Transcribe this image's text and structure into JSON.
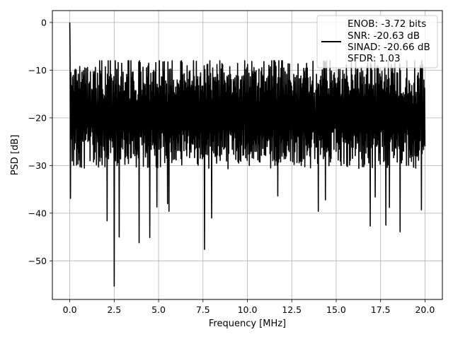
{
  "chart_data": {
    "type": "line",
    "title": "",
    "xlabel": "Frequency [MHz]",
    "ylabel": "PSD [dB]",
    "xlim": [
      -0.98,
      20.98
    ],
    "ylim": [
      -58.1,
      2.5
    ],
    "xticks": [
      0.0,
      2.5,
      5.0,
      7.5,
      10.0,
      12.5,
      15.0,
      17.5,
      20.0
    ],
    "xtick_labels": [
      "0.0",
      "2.5",
      "5.0",
      "7.5",
      "10.0",
      "12.5",
      "15.0",
      "17.5",
      "20.0"
    ],
    "yticks": [
      0,
      -10,
      -20,
      -30,
      -40,
      -50
    ],
    "ytick_labels": [
      "0",
      "−10",
      "−20",
      "−30",
      "−40",
      "−50"
    ],
    "grid": true,
    "legend_position": "top-right",
    "legend_lines": [
      "ENOB: -3.72 bits",
      "SNR: -20.63 dB",
      "SINAD: -20.66 dB",
      "SFDR: 1.03"
    ],
    "series": [
      {
        "color": "#000000",
        "x_start": 0.0,
        "x_end": 20.0,
        "baseline_db": -19.0,
        "upper_envelope_db": -9.5,
        "lower_envelope_db": -31.0,
        "peak": {
          "x": 0.0,
          "y": 0.0
        },
        "notable_dips": [
          {
            "x": 2.5,
            "y": -55.3
          },
          {
            "x": 7.6,
            "y": -47.6
          },
          {
            "x": 3.9,
            "y": -46.2
          },
          {
            "x": 4.5,
            "y": -45.1
          },
          {
            "x": 2.8,
            "y": -45.0
          },
          {
            "x": 18.6,
            "y": -43.9
          },
          {
            "x": 16.9,
            "y": -42.7
          },
          {
            "x": 17.8,
            "y": -42.5
          },
          {
            "x": 2.1,
            "y": -41.6
          },
          {
            "x": 8.0,
            "y": -41.0
          },
          {
            "x": 5.6,
            "y": -39.6
          },
          {
            "x": 14.0,
            "y": -39.6
          },
          {
            "x": 19.8,
            "y": -39.3
          },
          {
            "x": 18.0,
            "y": -38.8
          },
          {
            "x": 4.9,
            "y": -38.7
          },
          {
            "x": 5.5,
            "y": -38.0
          },
          {
            "x": 14.4,
            "y": -37.2
          },
          {
            "x": 11.7,
            "y": -36.4
          },
          {
            "x": 17.2,
            "y": -36.6
          },
          {
            "x": 0.05,
            "y": -36.9
          }
        ]
      }
    ]
  }
}
